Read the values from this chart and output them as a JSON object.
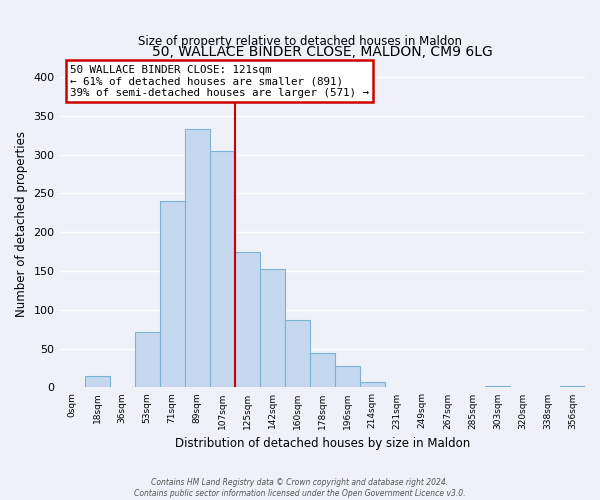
{
  "title": "50, WALLACE BINDER CLOSE, MALDON, CM9 6LG",
  "subtitle": "Size of property relative to detached houses in Maldon",
  "xlabel": "Distribution of detached houses by size in Maldon",
  "ylabel": "Number of detached properties",
  "bar_color": "#c5d8f0",
  "bar_edge_color": "#7ab3d4",
  "background_color": "#eef2f8",
  "grid_color": "#ffffff",
  "tick_labels": [
    "0sqm",
    "18sqm",
    "36sqm",
    "53sqm",
    "71sqm",
    "89sqm",
    "107sqm",
    "125sqm",
    "142sqm",
    "160sqm",
    "178sqm",
    "196sqm",
    "214sqm",
    "231sqm",
    "249sqm",
    "267sqm",
    "285sqm",
    "303sqm",
    "320sqm",
    "338sqm",
    "356sqm"
  ],
  "bar_heights": [
    0,
    15,
    0,
    72,
    240,
    333,
    305,
    175,
    153,
    87,
    44,
    27,
    7,
    0,
    0,
    0,
    0,
    2,
    0,
    0,
    2
  ],
  "ylim": [
    0,
    420
  ],
  "yticks": [
    0,
    50,
    100,
    150,
    200,
    250,
    300,
    350,
    400
  ],
  "property_line_x": 7.0,
  "annotation_title": "50 WALLACE BINDER CLOSE: 121sqm",
  "annotation_line1": "← 61% of detached houses are smaller (891)",
  "annotation_line2": "39% of semi-detached houses are larger (571) →",
  "annotation_box_color": "#ffffff",
  "annotation_border_color": "#cc0000",
  "property_line_color": "#cc0000",
  "footer_line1": "Contains HM Land Registry data © Crown copyright and database right 2024.",
  "footer_line2": "Contains public sector information licensed under the Open Government Licence v3.0."
}
